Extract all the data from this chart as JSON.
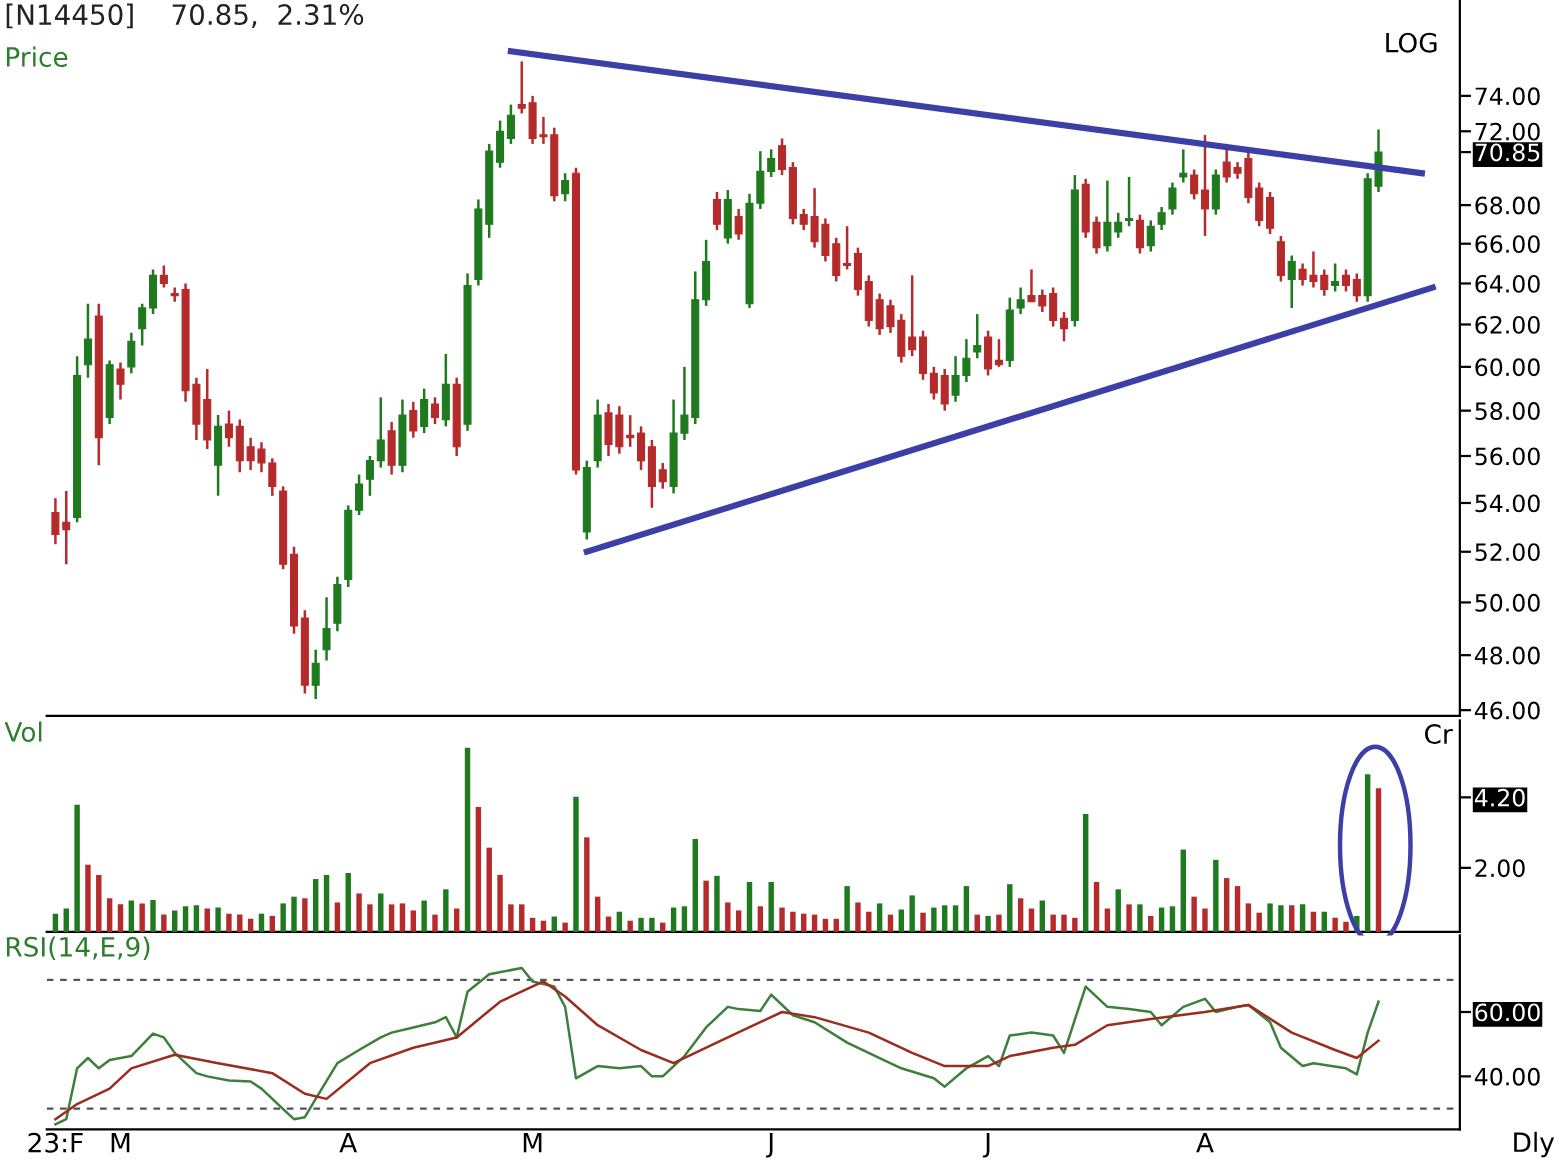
{
  "chart_data": [
    {
      "type": "candlestick",
      "title": "[N14450]    70.85,  2.31%",
      "ylabel": "Price",
      "annotations": [
        "LOG"
      ],
      "tick_labels": "y",
      "grid": false,
      "legend": false,
      "log": "y",
      "ohlc": [
        [
          53.6,
          54.2,
          52.3,
          52.7
        ],
        [
          53.2,
          54.5,
          51.5,
          52.9
        ],
        [
          53.4,
          60.5,
          53.2,
          59.6
        ],
        [
          60.1,
          63.0,
          59.5,
          61.3
        ],
        [
          62.4,
          63.0,
          55.6,
          56.8
        ],
        [
          57.7,
          60.3,
          57.4,
          60.1
        ],
        [
          59.9,
          60.2,
          58.5,
          59.2
        ],
        [
          60.0,
          61.6,
          59.7,
          61.2
        ],
        [
          61.8,
          63.0,
          61.0,
          62.8
        ],
        [
          62.8,
          64.7,
          62.5,
          64.4
        ],
        [
          64.4,
          64.9,
          63.8,
          64.0
        ],
        [
          63.5,
          63.8,
          63.1,
          63.4
        ],
        [
          63.7,
          64.0,
          58.4,
          58.9
        ],
        [
          59.2,
          59.5,
          56.7,
          57.4
        ],
        [
          58.5,
          59.9,
          56.3,
          56.7
        ],
        [
          55.6,
          57.8,
          54.3,
          57.3
        ],
        [
          57.4,
          58.0,
          56.4,
          56.8
        ],
        [
          57.3,
          57.6,
          55.3,
          55.8
        ],
        [
          56.4,
          56.8,
          55.4,
          55.8
        ],
        [
          56.3,
          56.6,
          55.3,
          55.7
        ],
        [
          55.7,
          55.9,
          54.3,
          54.7
        ],
        [
          54.5,
          54.7,
          51.3,
          51.5
        ],
        [
          51.9,
          52.2,
          48.8,
          49.1
        ],
        [
          49.4,
          49.7,
          46.6,
          46.9
        ],
        [
          46.9,
          48.2,
          46.4,
          47.7
        ],
        [
          48.2,
          50.2,
          47.8,
          49.0
        ],
        [
          49.2,
          51.0,
          48.9,
          50.7
        ],
        [
          50.9,
          53.9,
          50.6,
          53.7
        ],
        [
          53.7,
          55.2,
          53.5,
          54.8
        ],
        [
          55.0,
          56.0,
          54.3,
          55.8
        ],
        [
          55.8,
          58.6,
          55.5,
          56.7
        ],
        [
          57.1,
          57.5,
          55.2,
          55.6
        ],
        [
          55.6,
          58.5,
          55.3,
          57.8
        ],
        [
          58.0,
          58.4,
          56.8,
          57.1
        ],
        [
          57.3,
          59.0,
          57.0,
          58.5
        ],
        [
          58.3,
          58.6,
          57.4,
          57.7
        ],
        [
          57.6,
          60.6,
          57.3,
          59.2
        ],
        [
          59.2,
          59.5,
          56.0,
          56.4
        ],
        [
          57.4,
          64.5,
          57.1,
          63.9
        ],
        [
          64.2,
          68.3,
          63.9,
          67.8
        ],
        [
          67.0,
          71.3,
          66.3,
          70.9
        ],
        [
          70.3,
          72.6,
          70.0,
          72.0
        ],
        [
          71.6,
          73.5,
          71.3,
          72.9
        ],
        [
          73.5,
          76.0,
          73.0,
          73.3
        ],
        [
          73.6,
          74.0,
          71.3,
          71.6
        ],
        [
          71.8,
          72.8,
          71.3,
          71.7
        ],
        [
          71.8,
          72.2,
          68.2,
          68.5
        ],
        [
          68.6,
          69.7,
          68.2,
          69.3
        ],
        [
          69.7,
          70.0,
          55.2,
          55.4
        ],
        [
          52.8,
          55.8,
          52.5,
          55.5
        ],
        [
          55.8,
          58.5,
          55.5,
          57.8
        ],
        [
          57.9,
          58.3,
          56.0,
          56.5
        ],
        [
          57.8,
          58.2,
          56.1,
          56.4
        ],
        [
          56.9,
          57.8,
          56.4,
          56.8
        ],
        [
          57.0,
          57.3,
          55.4,
          55.8
        ],
        [
          56.4,
          56.7,
          53.8,
          54.7
        ],
        [
          55.4,
          55.7,
          54.6,
          54.9
        ],
        [
          54.7,
          58.5,
          54.4,
          57.0
        ],
        [
          57.0,
          60.0,
          56.7,
          57.8
        ],
        [
          57.7,
          64.6,
          57.4,
          63.2
        ],
        [
          63.2,
          66.2,
          62.9,
          65.1
        ],
        [
          68.3,
          68.7,
          66.7,
          67.0
        ],
        [
          66.3,
          68.8,
          66.0,
          68.3
        ],
        [
          67.4,
          67.8,
          66.2,
          66.5
        ],
        [
          63.0,
          68.6,
          62.8,
          68.1
        ],
        [
          68.1,
          70.9,
          67.8,
          69.8
        ],
        [
          69.8,
          71.0,
          69.5,
          70.5
        ],
        [
          71.2,
          71.6,
          69.6,
          69.9
        ],
        [
          70.0,
          70.3,
          67.0,
          67.3
        ],
        [
          67.5,
          67.8,
          66.7,
          67.0
        ],
        [
          67.4,
          68.9,
          65.8,
          66.1
        ],
        [
          67.0,
          67.3,
          65.1,
          65.4
        ],
        [
          66.0,
          66.3,
          64.1,
          64.4
        ],
        [
          65.0,
          66.9,
          64.7,
          64.9
        ],
        [
          65.5,
          65.8,
          63.4,
          63.7
        ],
        [
          64.1,
          64.4,
          61.9,
          62.2
        ],
        [
          63.2,
          63.5,
          61.5,
          61.8
        ],
        [
          62.9,
          63.2,
          61.6,
          61.9
        ],
        [
          62.2,
          62.5,
          60.2,
          60.5
        ],
        [
          61.4,
          64.4,
          60.5,
          60.8
        ],
        [
          61.4,
          61.7,
          59.4,
          59.7
        ],
        [
          59.7,
          60.0,
          58.5,
          58.8
        ],
        [
          59.6,
          59.9,
          58.0,
          58.3
        ],
        [
          58.7,
          60.5,
          58.4,
          59.6
        ],
        [
          59.6,
          61.3,
          59.3,
          60.4
        ],
        [
          60.7,
          62.5,
          60.4,
          61.0
        ],
        [
          61.4,
          61.7,
          59.6,
          59.9
        ],
        [
          60.3,
          61.3,
          60.0,
          60.1
        ],
        [
          60.3,
          63.3,
          60.0,
          62.7
        ],
        [
          62.8,
          63.8,
          62.5,
          63.2
        ],
        [
          63.4,
          64.7,
          63.1,
          63.1
        ],
        [
          63.4,
          63.7,
          62.6,
          62.9
        ],
        [
          63.5,
          63.8,
          61.9,
          62.2
        ],
        [
          62.3,
          62.6,
          61.2,
          61.8
        ],
        [
          62.2,
          69.6,
          61.9,
          68.8
        ],
        [
          69.1,
          69.4,
          66.3,
          66.6
        ],
        [
          67.1,
          67.4,
          65.5,
          65.8
        ],
        [
          65.9,
          69.3,
          65.6,
          67.1
        ],
        [
          66.6,
          67.6,
          66.3,
          67.1
        ],
        [
          67.2,
          69.5,
          66.9,
          67.3
        ],
        [
          67.2,
          67.5,
          65.5,
          65.8
        ],
        [
          65.9,
          67.2,
          65.6,
          66.9
        ],
        [
          67.0,
          67.9,
          66.7,
          67.6
        ],
        [
          67.8,
          69.2,
          67.5,
          68.9
        ],
        [
          69.5,
          71.0,
          69.2,
          69.7
        ],
        [
          69.6,
          69.9,
          68.3,
          68.6
        ],
        [
          68.8,
          71.8,
          66.4,
          67.8
        ],
        [
          67.8,
          69.9,
          67.5,
          69.6
        ],
        [
          70.3,
          71.3,
          69.2,
          69.5
        ],
        [
          70.0,
          70.3,
          69.4,
          69.7
        ],
        [
          70.5,
          70.8,
          68.1,
          68.4
        ],
        [
          68.9,
          69.2,
          66.9,
          67.2
        ],
        [
          68.4,
          68.7,
          66.5,
          66.8
        ],
        [
          66.1,
          66.4,
          64.1,
          64.4
        ],
        [
          64.2,
          65.4,
          62.8,
          65.1
        ],
        [
          64.7,
          65.0,
          63.9,
          64.2
        ],
        [
          64.4,
          65.6,
          63.8,
          64.1
        ],
        [
          64.4,
          64.7,
          63.4,
          63.7
        ],
        [
          63.9,
          65.0,
          63.6,
          64.1
        ],
        [
          64.4,
          64.7,
          63.6,
          63.9
        ],
        [
          64.2,
          64.5,
          63.1,
          63.4
        ],
        [
          63.4,
          69.7,
          63.1,
          69.4
        ],
        [
          69.0,
          72.1,
          68.7,
          70.85
        ],
        null,
        null,
        null,
        null,
        null,
        null,
        null
      ],
      "colors": [
        "#b52a2a",
        "#b52a2a",
        "#1f7a1f",
        "#1f7a1f",
        "#b52a2a",
        "#1f7a1f",
        "#b52a2a",
        "#1f7a1f",
        "#1f7a1f",
        "#1f7a1f",
        "#b52a2a",
        "#b52a2a",
        "#b52a2a",
        "#b52a2a",
        "#b52a2a",
        "#1f7a1f",
        "#b52a2a",
        "#b52a2a",
        "#b52a2a",
        "#b52a2a",
        "#b52a2a",
        "#b52a2a",
        "#b52a2a",
        "#b52a2a",
        "#1f7a1f",
        "#1f7a1f",
        "#1f7a1f",
        "#1f7a1f",
        "#1f7a1f",
        "#1f7a1f",
        "#1f7a1f",
        "#b52a2a",
        "#1f7a1f",
        "#b52a2a",
        "#1f7a1f",
        "#b52a2a",
        "#1f7a1f",
        "#b52a2a",
        "#1f7a1f",
        "#1f7a1f",
        "#1f7a1f",
        "#1f7a1f",
        "#1f7a1f",
        "#b52a2a",
        "#b52a2a",
        "#b52a2a",
        "#b52a2a",
        "#1f7a1f",
        "#b52a2a",
        "#1f7a1f",
        "#1f7a1f",
        "#b52a2a",
        "#b52a2a",
        "#b52a2a",
        "#b52a2a",
        "#b52a2a",
        "#b52a2a",
        "#1f7a1f",
        "#1f7a1f",
        "#1f7a1f",
        "#1f7a1f",
        "#b52a2a",
        "#1f7a1f",
        "#b52a2a",
        "#1f7a1f",
        "#1f7a1f",
        "#1f7a1f",
        "#b52a2a",
        "#b52a2a",
        "#b52a2a",
        "#b52a2a",
        "#b52a2a",
        "#b52a2a",
        "#b52a2a",
        "#b52a2a",
        "#b52a2a",
        "#b52a2a",
        "#b52a2a",
        "#b52a2a",
        "#b52a2a",
        "#b52a2a",
        "#b52a2a",
        "#b52a2a",
        "#1f7a1f",
        "#1f7a1f",
        "#1f7a1f",
        "#b52a2a",
        "#b52a2a",
        "#1f7a1f",
        "#1f7a1f",
        "#b52a2a",
        "#b52a2a",
        "#b52a2a",
        "#b52a2a",
        "#1f7a1f",
        "#b52a2a",
        "#b52a2a",
        "#1f7a1f",
        "#1f7a1f",
        "#1f7a1f",
        "#b52a2a",
        "#1f7a1f",
        "#1f7a1f",
        "#1f7a1f",
        "#1f7a1f",
        "#b52a2a",
        "#b52a2a",
        "#1f7a1f",
        "#b52a2a",
        "#b52a2a",
        "#b52a2a",
        "#b52a2a",
        "#b52a2a",
        "#b52a2a",
        "#1f7a1f",
        "#b52a2a",
        "#b52a2a",
        "#b52a2a",
        "#1f7a1f",
        "#b52a2a",
        "#b52a2a",
        "#1f7a1f",
        "#1f7a1f",
        null,
        null,
        null,
        null,
        null,
        null,
        null
      ],
      "series": [
        {
          "type": "line",
          "color": "#3b3fa6",
          "values": [
            null,
            null,
            null,
            null,
            null,
            null,
            null,
            null,
            null,
            null,
            null,
            null,
            null,
            null,
            null,
            null,
            null,
            null,
            null,
            null,
            null,
            null,
            null,
            null,
            null,
            null,
            null,
            null,
            null,
            null,
            null,
            null,
            null,
            null,
            null,
            null,
            null,
            null,
            null,
            null,
            null,
            null,
            76.6,
            null,
            null,
            null,
            null,
            null,
            null,
            null,
            null,
            null,
            null,
            null,
            null,
            null,
            null,
            null,
            null,
            null,
            null,
            null,
            null,
            null,
            null,
            null,
            null,
            null,
            null,
            null,
            null,
            null,
            null,
            null,
            null,
            null,
            null,
            null,
            null,
            null,
            null,
            null,
            null,
            null,
            null,
            null,
            null,
            null,
            null,
            null,
            null,
            null,
            null,
            null,
            null,
            null,
            null,
            null,
            null,
            null,
            null,
            null,
            null,
            null,
            null,
            null,
            null,
            null,
            null,
            null,
            null,
            null,
            null,
            null,
            null,
            null,
            null,
            null,
            null,
            null,
            null,
            null,
            null,
            null,
            null,
            null,
            69.7,
            null,
            null,
            null
          ]
        },
        {
          "type": "line",
          "color": "#3b3fa6",
          "values": [
            null,
            null,
            null,
            null,
            null,
            null,
            null,
            null,
            null,
            null,
            null,
            null,
            null,
            null,
            null,
            null,
            null,
            null,
            null,
            null,
            null,
            null,
            null,
            null,
            null,
            null,
            null,
            null,
            null,
            null,
            null,
            null,
            null,
            null,
            null,
            null,
            null,
            null,
            null,
            null,
            null,
            null,
            null,
            null,
            null,
            null,
            null,
            null,
            null,
            52.0,
            null,
            null,
            null,
            null,
            null,
            null,
            null,
            null,
            null,
            null,
            null,
            null,
            null,
            null,
            null,
            null,
            null,
            null,
            null,
            null,
            null,
            null,
            null,
            null,
            null,
            null,
            null,
            null,
            null,
            null,
            null,
            null,
            null,
            null,
            null,
            null,
            null,
            null,
            null,
            null,
            null,
            null,
            null,
            null,
            null,
            null,
            null,
            null,
            null,
            null,
            null,
            null,
            null,
            null,
            null,
            null,
            null,
            null,
            null,
            null,
            null,
            null,
            null,
            null,
            null,
            null,
            null,
            null,
            null,
            null,
            null,
            null,
            null,
            null,
            null,
            null,
            null,
            63.8,
            null,
            null
          ]
        }
      ],
      "ylim": [
        45.8,
        79.7
      ],
      "yticks": [
        {
          "value": 46,
          "label": "46.00"
        },
        {
          "value": 48,
          "label": "48.00"
        },
        {
          "value": 50,
          "label": "50.00"
        },
        {
          "value": 52,
          "label": "52.00"
        },
        {
          "value": 54,
          "label": "54.00"
        },
        {
          "value": 56,
          "label": "56.00"
        },
        {
          "value": 58,
          "label": "58.00"
        },
        {
          "value": 60,
          "label": "60.00"
        },
        {
          "value": 62,
          "label": "62.00"
        },
        {
          "value": 64,
          "label": "64.00"
        },
        {
          "value": 66,
          "label": "66.00"
        },
        {
          "value": 68,
          "label": "68.00"
        },
        {
          "value": 72,
          "label": "72.00"
        },
        {
          "value": 74,
          "label": "74.00"
        },
        {
          "value": 70.85,
          "label": "70.85"
        }
      ]
    },
    {
      "type": "bar",
      "ylabel": "Vol",
      "annotations": [
        "Cr"
      ],
      "tick_labels": "y",
      "grid": false,
      "legend": false,
      "values": [
        0.57,
        0.73,
        3.97,
        2.1,
        1.78,
        1.05,
        0.86,
        0.98,
        0.89,
        1.0,
        0.54,
        0.67,
        0.8,
        0.83,
        0.73,
        0.76,
        0.57,
        0.54,
        0.41,
        0.57,
        0.5,
        0.89,
        1.1,
        1.05,
        1.65,
        1.78,
        0.92,
        1.84,
        1.2,
        0.86,
        1.2,
        0.86,
        0.89,
        0.67,
        0.98,
        0.54,
        1.33,
        0.73,
        5.75,
        3.9,
        2.63,
        1.78,
        0.86,
        0.86,
        0.44,
        0.35,
        0.48,
        0.29,
        4.22,
        2.95,
        1.1,
        0.48,
        0.63,
        0.35,
        0.44,
        0.44,
        0.29,
        0.76,
        0.8,
        2.9,
        1.6,
        1.75,
        0.92,
        0.67,
        1.56,
        0.8,
        1.56,
        0.76,
        0.63,
        0.57,
        0.54,
        0.41,
        0.41,
        1.43,
        0.92,
        0.63,
        0.89,
        0.54,
        0.7,
        1.14,
        0.6,
        0.76,
        0.83,
        0.83,
        1.43,
        0.54,
        0.5,
        0.54,
        1.49,
        1.05,
        0.73,
        0.98,
        0.54,
        0.54,
        0.44,
        3.68,
        1.56,
        0.73,
        1.33,
        0.86,
        0.86,
        0.5,
        0.76,
        0.8,
        2.57,
        1.1,
        0.73,
        2.25,
        1.68,
        1.43,
        0.89,
        0.6,
        0.89,
        0.83,
        0.83,
        0.86,
        0.63,
        0.63,
        0.44,
        0.32,
        0.5,
        4.92,
        4.48,
        null,
        null,
        null,
        null,
        null,
        null,
        null
      ],
      "colors": [
        "#1f7a1f",
        "#1f7a1f",
        "#1f7a1f",
        "#b52a2a",
        "#b52a2a",
        "#b52a2a",
        "#b52a2a",
        "#1f7a1f",
        "#b52a2a",
        "#1f7a1f",
        "#b52a2a",
        "#1f7a1f",
        "#1f7a1f",
        "#1f7a1f",
        "#b52a2a",
        "#1f7a1f",
        "#b52a2a",
        "#b52a2a",
        "#b52a2a",
        "#1f7a1f",
        "#b52a2a",
        "#1f7a1f",
        "#1f7a1f",
        "#b52a2a",
        "#1f7a1f",
        "#1f7a1f",
        "#b52a2a",
        "#1f7a1f",
        "#b52a2a",
        "#b52a2a",
        "#1f7a1f",
        "#b52a2a",
        "#b52a2a",
        "#b52a2a",
        "#1f7a1f",
        "#b52a2a",
        "#1f7a1f",
        "#b52a2a",
        "#1f7a1f",
        "#b52a2a",
        "#b52a2a",
        "#b52a2a",
        "#b52a2a",
        "#b52a2a",
        "#b52a2a",
        "#b52a2a",
        "#1f7a1f",
        "#b52a2a",
        "#1f7a1f",
        "#b52a2a",
        "#b52a2a",
        "#b52a2a",
        "#1f7a1f",
        "#b52a2a",
        "#1f7a1f",
        "#1f7a1f",
        "#b52a2a",
        "#1f7a1f",
        "#1f7a1f",
        "#1f7a1f",
        "#b52a2a",
        "#1f7a1f",
        "#b52a2a",
        "#b52a2a",
        "#1f7a1f",
        "#b52a2a",
        "#1f7a1f",
        "#b52a2a",
        "#b52a2a",
        "#b52a2a",
        "#b52a2a",
        "#b52a2a",
        "#b52a2a",
        "#1f7a1f",
        "#b52a2a",
        "#b52a2a",
        "#1f7a1f",
        "#b52a2a",
        "#1f7a1f",
        "#1f7a1f",
        "#b52a2a",
        "#1f7a1f",
        "#1f7a1f",
        "#1f7a1f",
        "#1f7a1f",
        "#b52a2a",
        "#1f7a1f",
        "#b52a2a",
        "#1f7a1f",
        "#b52a2a",
        "#b52a2a",
        "#1f7a1f",
        "#b52a2a",
        "#b52a2a",
        "#b52a2a",
        "#1f7a1f",
        "#b52a2a",
        "#b52a2a",
        "#1f7a1f",
        "#b52a2a",
        "#1f7a1f",
        "#b52a2a",
        "#1f7a1f",
        "#1f7a1f",
        "#1f7a1f",
        "#b52a2a",
        "#b52a2a",
        "#1f7a1f",
        "#b52a2a",
        "#b52a2a",
        "#b52a2a",
        "#b52a2a",
        "#1f7a1f",
        "#1f7a1f",
        "#b52a2a",
        "#1f7a1f",
        "#b52a2a",
        "#1f7a1f",
        "#b52a2a",
        "#b52a2a",
        "#1f7a1f",
        "#1f7a1f",
        "#b52a2a",
        null,
        null,
        null,
        null,
        null,
        null,
        null
      ],
      "ylim": [
        0,
        6.6
      ],
      "yticks": [
        {
          "value": 2,
          "label": "2.00"
        },
        {
          "value": 4.2,
          "label": "4.20"
        }
      ]
    },
    {
      "type": "line",
      "ylabel": "RSI(14,E,9)",
      "annotations": [
        "Dly"
      ],
      "grid": false,
      "legend": false,
      "categories": [
        "23:F",
        null,
        null,
        null,
        null,
        null,
        "M",
        null,
        null,
        null,
        null,
        null,
        null,
        null,
        null,
        null,
        null,
        null,
        null,
        null,
        null,
        null,
        null,
        null,
        null,
        null,
        null,
        "A",
        null,
        null,
        null,
        null,
        null,
        null,
        null,
        null,
        null,
        null,
        null,
        null,
        null,
        null,
        null,
        null,
        "M",
        null,
        null,
        null,
        null,
        null,
        null,
        null,
        null,
        null,
        null,
        null,
        null,
        null,
        null,
        null,
        null,
        null,
        null,
        null,
        null,
        null,
        "J",
        null,
        null,
        null,
        null,
        null,
        null,
        null,
        null,
        null,
        null,
        null,
        null,
        null,
        null,
        null,
        null,
        null,
        null,
        null,
        "J",
        null,
        null,
        null,
        null,
        null,
        null,
        null,
        null,
        null,
        null,
        null,
        null,
        null,
        null,
        null,
        null,
        null,
        null,
        null,
        "A",
        null,
        null,
        null,
        null,
        null,
        null,
        null,
        null,
        null,
        null,
        null,
        null,
        null,
        null,
        null,
        null,
        null,
        null,
        null,
        null,
        null,
        null,
        null
      ],
      "series": [
        {
          "color": "#3d7f3d",
          "values": [
            25.1,
            26.7,
            42.5,
            45.7,
            42.5,
            45.1,
            null,
            46.3,
            null,
            53.3,
            52.1,
            47.3,
            null,
            41,
            40,
            null,
            38.7,
            null,
            38.4,
            36.2,
            null,
            29.8,
            26.7,
            27.3,
            33,
            null,
            44.1,
            null,
            48.2,
            null,
            52.1,
            53.6,
            null,
            55.2,
            null,
            56.8,
            58.4,
            52.1,
            66.3,
            null,
            71.7,
            null,
            null,
            73.7,
            69.5,
            null,
            67.9,
            61.6,
            39.4,
            null,
            43.2,
            null,
            42.5,
            null,
            43.2,
            40,
            40,
            null,
            46.3,
            null,
            55.2,
            null,
            61.6,
            60.9,
            null,
            60.3,
            65.4,
            null,
            59,
            null,
            56.8,
            null,
            null,
            50.5,
            null,
            null,
            45.7,
            null,
            42.5,
            null,
            null,
            39.4,
            36.8,
            null,
            42.5,
            null,
            46.3,
            43.2,
            52.7,
            null,
            53.6,
            null,
            52.7,
            47.3,
            null,
            67.9,
            null,
            61.6,
            null,
            60.9,
            null,
            60,
            55.9,
            null,
            61.6,
            null,
            64.1,
            60,
            null,
            61.6,
            62.2,
            null,
            56.8,
            48.9,
            null,
            43.2,
            44.1,
            null,
            null,
            42.5,
            40.6,
            53.6,
            63.2,
            null,
            null,
            null,
            null,
            null,
            null,
            null
          ]
        },
        {
          "color": "#9b2d20",
          "values": [
            26.7,
            null,
            31.4,
            null,
            null,
            36.2,
            null,
            42.5,
            null,
            null,
            null,
            46.7,
            null,
            null,
            null,
            44.1,
            null,
            null,
            null,
            null,
            41,
            null,
            null,
            34.6,
            null,
            33,
            null,
            null,
            null,
            44.1,
            null,
            null,
            null,
            48.9,
            null,
            null,
            null,
            52.1,
            null,
            null,
            null,
            63.2,
            null,
            null,
            null,
            69.5,
            null,
            64.8,
            null,
            null,
            55.9,
            null,
            null,
            null,
            48.2,
            null,
            null,
            44.1,
            null,
            null,
            null,
            null,
            52.1,
            null,
            null,
            null,
            null,
            60,
            null,
            null,
            58.4,
            null,
            null,
            null,
            null,
            53.6,
            null,
            null,
            null,
            47.3,
            null,
            null,
            43.2,
            null,
            null,
            null,
            43.2,
            null,
            46.3,
            null,
            null,
            null,
            48.9,
            null,
            49.8,
            null,
            null,
            55.9,
            null,
            null,
            null,
            57.8,
            null,
            null,
            null,
            null,
            60,
            null,
            null,
            null,
            62.2,
            null,
            null,
            null,
            53.6,
            null,
            null,
            null,
            48.2,
            null,
            45.7,
            null,
            51.1,
            null,
            null,
            null,
            null,
            null,
            null,
            null
          ]
        }
      ],
      "ref_lines": [
        {
          "axis": "y",
          "value": 70,
          "color": "#555555",
          "line_style": "dashed"
        },
        {
          "axis": "y",
          "value": 30,
          "color": "#555555",
          "line_style": "dashed"
        }
      ],
      "ylim": [
        23.5,
        83.8
      ],
      "yticks": [
        {
          "value": 40,
          "label": "40.00"
        },
        {
          "value": 60,
          "label": "60.00"
        }
      ]
    }
  ]
}
